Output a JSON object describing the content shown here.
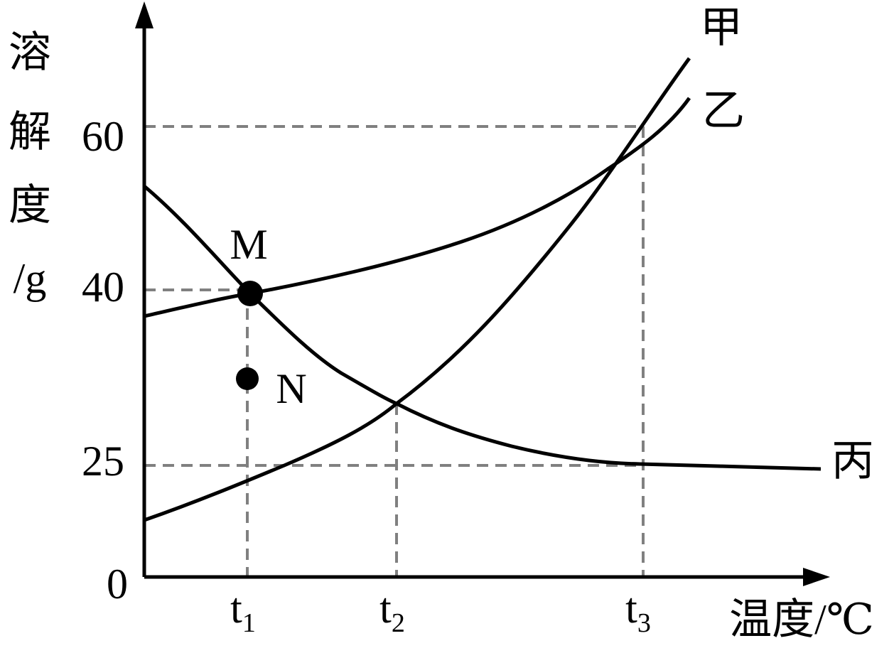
{
  "y_axis_label": [
    "溶",
    "解",
    "度",
    "/g"
  ],
  "x_axis_label": "温度/℃",
  "y_ticks": [
    "60",
    "40",
    "25"
  ],
  "origin": "0",
  "x_ticks": [
    {
      "base": "t",
      "sub": "1"
    },
    {
      "base": "t",
      "sub": "2"
    },
    {
      "base": "t",
      "sub": "3"
    }
  ],
  "curves": [
    "甲",
    "乙",
    "丙"
  ],
  "points": [
    "M",
    "N"
  ]
}
